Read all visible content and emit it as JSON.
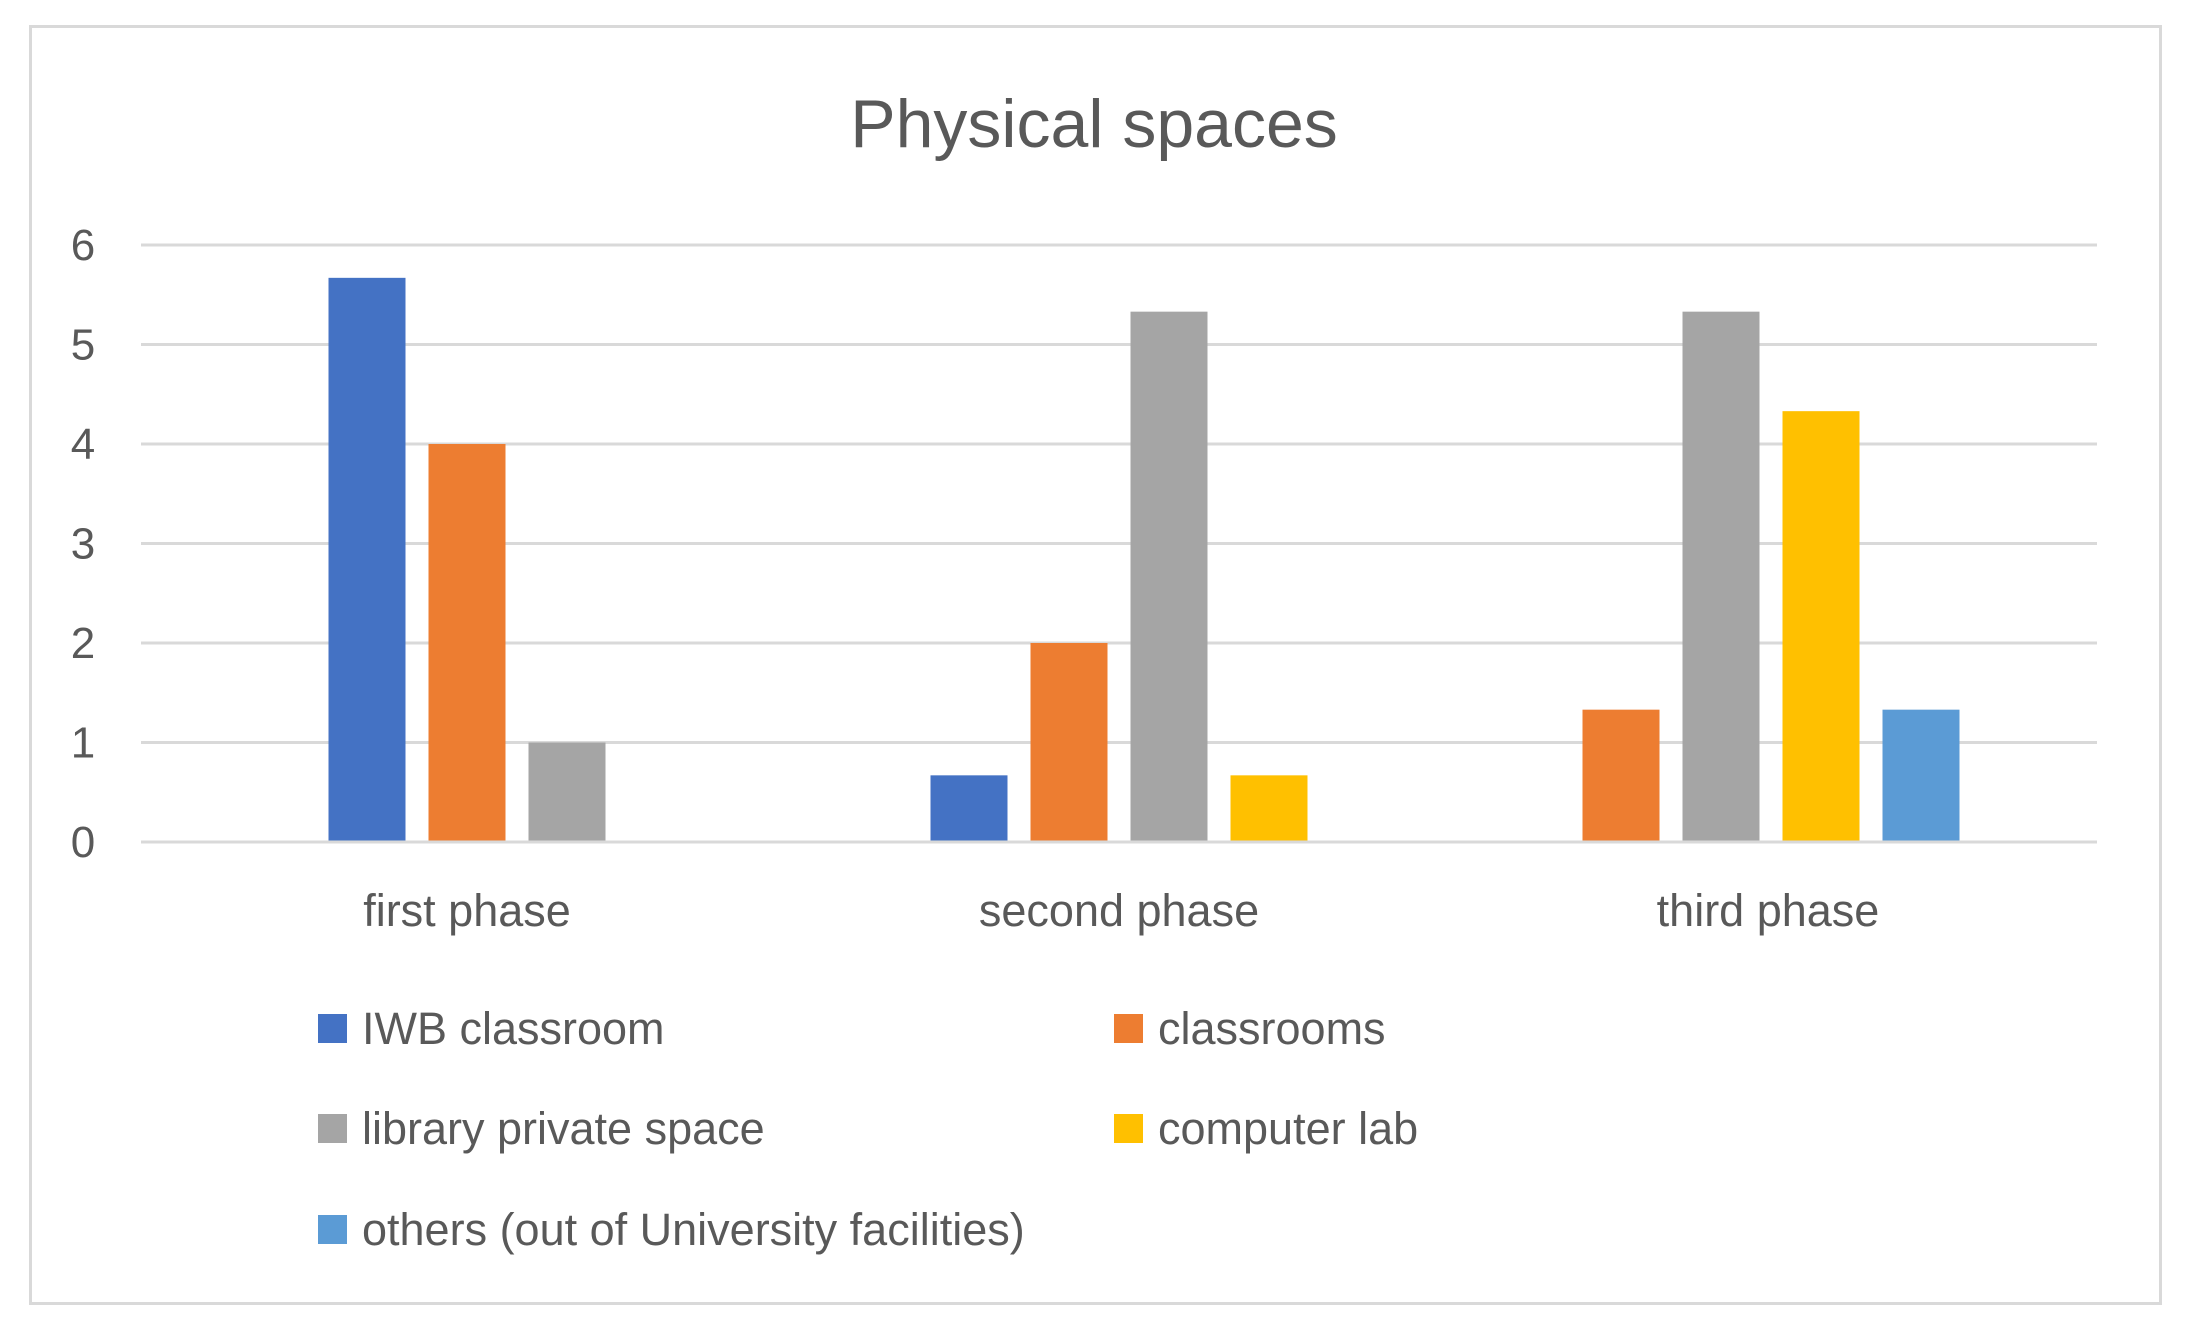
{
  "chart_data": {
    "type": "bar",
    "title": "Physical spaces",
    "categories": [
      "first phase",
      "second phase",
      "third phase"
    ],
    "series": [
      {
        "name": "IWB classroom",
        "color": "#4472c4",
        "values": [
          5.67,
          0.67,
          0
        ]
      },
      {
        "name": "classrooms",
        "color": "#ed7d31",
        "values": [
          4,
          2,
          1.33
        ]
      },
      {
        "name": "library private space",
        "color": "#a5a5a5",
        "values": [
          1,
          5.33,
          5.33
        ]
      },
      {
        "name": "computer lab",
        "color": "#ffc000",
        "values": [
          0,
          0.67,
          4.33
        ]
      },
      {
        "name": "others (out of University facilities)",
        "color": "#5b9bd5",
        "values": [
          0,
          0,
          1.33
        ]
      }
    ],
    "ylim": [
      0,
      6
    ],
    "yticks": [
      "0",
      "1",
      "2",
      "3",
      "4",
      "5",
      "6"
    ],
    "grid": true,
    "legend_position": "bottom"
  }
}
